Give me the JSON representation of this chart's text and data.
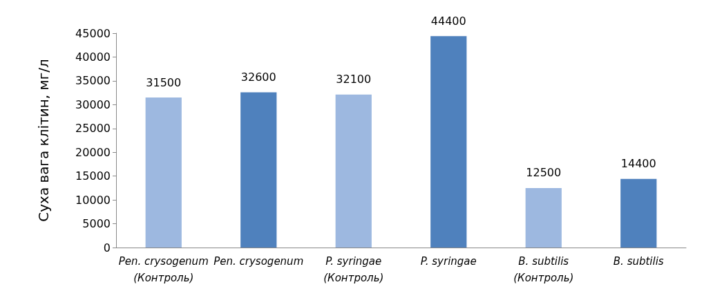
{
  "chart_data": {
    "type": "bar",
    "ylabel": "Суха вага клітин, мг/л",
    "categories": [
      "Pen. crysogenum (Контроль)",
      "Pen. crysogenum",
      "P. syringae (Контроль)",
      "P. syringae",
      "B. subtilis (Контроль)",
      "B. subtilis"
    ],
    "values": [
      31500,
      32600,
      32100,
      44400,
      12500,
      14400
    ],
    "colors": [
      "#9db8e0",
      "#4f81bd",
      "#9db8e0",
      "#4f81bd",
      "#9db8e0",
      "#4f81bd"
    ],
    "ylim": [
      0,
      45000
    ],
    "yticks": [
      0,
      5000,
      10000,
      15000,
      20000,
      25000,
      30000,
      35000,
      40000,
      45000
    ],
    "grid": false,
    "data_labels": true
  }
}
